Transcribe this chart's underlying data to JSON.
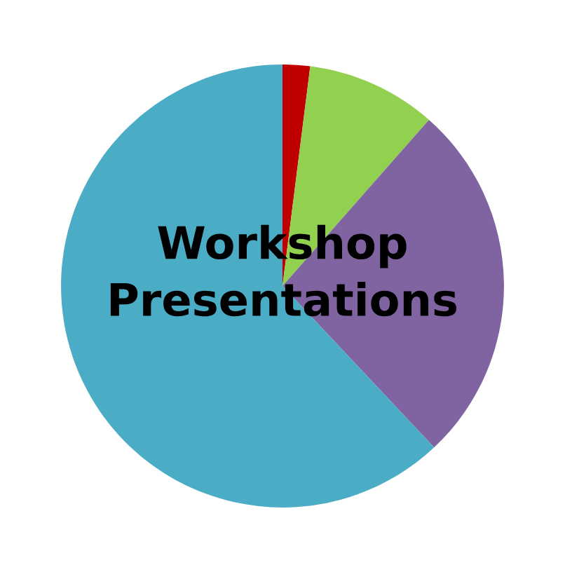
{
  "chart_data": {
    "type": "pie",
    "title": "Workshop Presentations",
    "categories": [
      null,
      null,
      null,
      null
    ],
    "values": [
      2,
      9.5,
      26.5,
      62
    ],
    "colors": [
      "#c00000",
      "#92d050",
      "#8064a2",
      "#4bacc6"
    ]
  }
}
